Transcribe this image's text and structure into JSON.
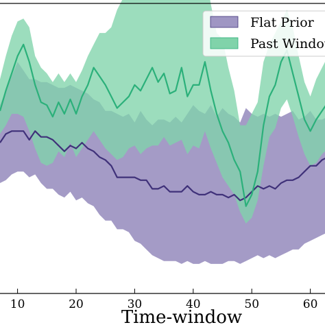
{
  "chart_data": {
    "type": "area",
    "title": "",
    "xlabel": "Time-window",
    "ylabel": "",
    "xlim": [
      7,
      62.5
    ],
    "ylim": [
      0,
      100
    ],
    "xticks": [
      10,
      20,
      30,
      40,
      50,
      60
    ],
    "grid": false,
    "legend": {
      "placement": "top-right",
      "entries": [
        "Flat Prior",
        "Past Window"
      ]
    },
    "x": [
      7,
      8,
      9,
      10,
      11,
      12,
      13,
      14,
      15,
      16,
      17,
      18,
      19,
      20,
      21,
      22,
      23,
      24,
      25,
      26,
      27,
      28,
      29,
      30,
      31,
      32,
      33,
      34,
      35,
      36,
      37,
      38,
      39,
      40,
      41,
      42,
      43,
      44,
      45,
      46,
      47,
      48,
      49,
      50,
      51,
      52,
      53,
      54,
      55,
      56,
      57,
      58,
      59,
      60,
      61,
      62,
      63
    ],
    "series": [
      {
        "name": "Flat Prior",
        "color": "#9f96c3",
        "line_color": "#3f3179",
        "mean": [
          52,
          55,
          56,
          56,
          56,
          53,
          56,
          54,
          54,
          53,
          51,
          49,
          51,
          50,
          52,
          50,
          49,
          47,
          46,
          44,
          40,
          40,
          40,
          40,
          39,
          39,
          36,
          36,
          37,
          35,
          35,
          35,
          37,
          35,
          34,
          34,
          35,
          34,
          34,
          33,
          34,
          32,
          33,
          35,
          37,
          36,
          37,
          36,
          38,
          39,
          39,
          40,
          42,
          44,
          44,
          46,
          47
        ],
        "lower": [
          38,
          39,
          41,
          42,
          42,
          40,
          41,
          38,
          36,
          36,
          34,
          33,
          35,
          32,
          33,
          31,
          30,
          27,
          25,
          25,
          22,
          22,
          21,
          18,
          17,
          15,
          13,
          12,
          11,
          11,
          11,
          10,
          11,
          10,
          10,
          11,
          10,
          10,
          10,
          11,
          11,
          10,
          11,
          12,
          13,
          12,
          13,
          12,
          13,
          14,
          15,
          15,
          17,
          18,
          19,
          20,
          21
        ],
        "upper": [
          65,
          70,
          75,
          80,
          77,
          74,
          74,
          73,
          73,
          72,
          71,
          71,
          72,
          71,
          70,
          69,
          67,
          66,
          63,
          63,
          62,
          61,
          62,
          59,
          63,
          60,
          58,
          60,
          60,
          59,
          61,
          59,
          62,
          65,
          63,
          62,
          65,
          61,
          64,
          62,
          61,
          59,
          64,
          62,
          61,
          62,
          61,
          62,
          61,
          62,
          63,
          60,
          61,
          63,
          60,
          60,
          61
        ]
      },
      {
        "name": "Past Window",
        "color": "#80d3aa",
        "line_color": "#2bb07a",
        "mean": [
          63,
          70,
          76,
          82,
          86,
          80,
          72,
          66,
          65,
          61,
          66,
          62,
          67,
          62,
          68,
          72,
          78,
          75,
          72,
          68,
          64,
          66,
          68,
          72,
          70,
          74,
          78,
          73,
          76,
          69,
          70,
          78,
          68,
          72,
          72,
          80,
          70,
          62,
          56,
          52,
          46,
          42,
          30,
          34,
          42,
          58,
          68,
          72,
          80,
          84,
          76,
          68,
          60,
          56,
          60,
          63,
          66
        ],
        "lower": [
          55,
          58,
          62,
          62,
          61,
          56,
          50,
          45,
          44,
          45,
          49,
          47,
          52,
          47,
          50,
          53,
          56,
          53,
          50,
          48,
          46,
          47,
          50,
          51,
          48,
          50,
          51,
          51,
          54,
          51,
          52,
          53,
          48,
          51,
          50,
          56,
          50,
          45,
          40,
          37,
          34,
          28,
          24,
          26,
          32,
          44,
          54,
          57,
          64,
          67,
          61,
          54,
          48,
          44,
          45,
          48,
          50
        ],
        "upper": [
          74,
          82,
          89,
          94,
          95,
          92,
          82,
          78,
          76,
          73,
          76,
          73,
          76,
          73,
          77,
          82,
          86,
          90,
          90,
          92,
          98,
          102,
          108,
          114,
          118,
          112,
          108,
          112,
          108,
          106,
          112,
          113,
          109,
          113,
          104,
          112,
          100,
          90,
          88,
          78,
          70,
          58,
          58,
          62,
          66,
          80,
          86,
          90,
          94,
          98,
          92,
          82,
          73,
          68,
          74,
          78,
          82
        ]
      }
    ]
  }
}
